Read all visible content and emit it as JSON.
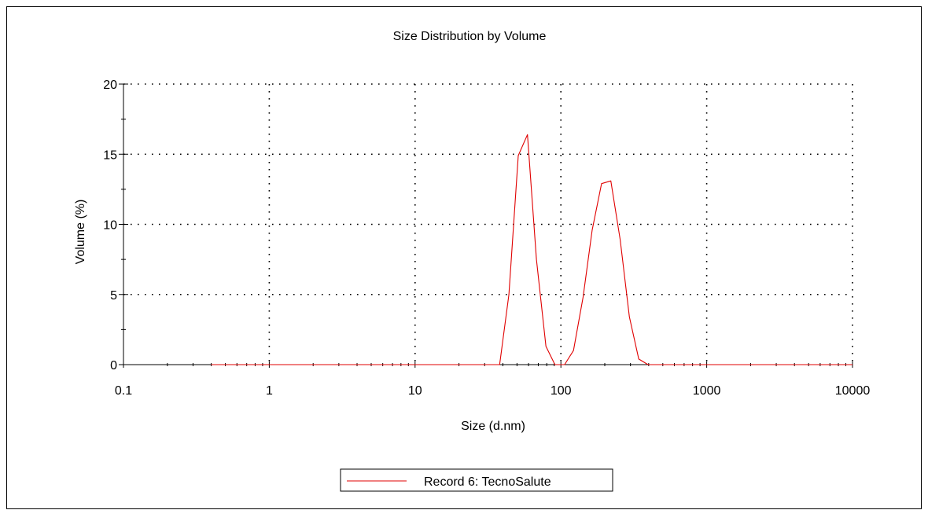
{
  "chart_data": {
    "type": "line",
    "title": "Size Distribution by Volume",
    "xlabel": "Size (d.nm)",
    "ylabel": "Volume (%)",
    "x_scale": "log",
    "xlim": [
      0.1,
      10000
    ],
    "ylim": [
      0,
      20
    ],
    "x_ticks": [
      0.1,
      1,
      10,
      100,
      1000,
      10000
    ],
    "x_tick_labels": [
      "0.1",
      "1",
      "10",
      "100",
      "1000",
      "10000"
    ],
    "y_ticks": [
      0,
      5,
      10,
      15,
      20
    ],
    "y_tick_labels": [
      "0",
      "5",
      "10",
      "15",
      "20"
    ],
    "grid": true,
    "legend_position": "bottom-center",
    "series": [
      {
        "name": "Record 6: TecnoSalute",
        "color": "#e00000",
        "x": [
          0.4,
          10,
          38,
          44,
          51,
          59,
          68,
          79,
          91,
          106,
          122,
          142,
          164,
          190,
          220,
          255,
          295,
          342,
          396,
          1000,
          10000
        ],
        "y": [
          0,
          0,
          0,
          5.0,
          14.9,
          16.4,
          7.5,
          1.3,
          0,
          0,
          1.0,
          4.8,
          9.6,
          12.9,
          13.1,
          8.9,
          3.4,
          0.4,
          0,
          0,
          0
        ]
      }
    ]
  }
}
